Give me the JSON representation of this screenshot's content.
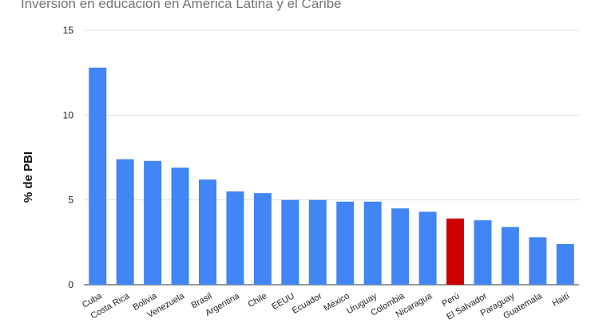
{
  "chart_data": {
    "type": "bar",
    "title": "Inversión en educación en América Latina y el Caribe",
    "xlabel": "",
    "ylabel": "% de PBI",
    "ylim": [
      0,
      15
    ],
    "yticks": [
      "0",
      "5",
      "10",
      "15"
    ],
    "ytick_values": [
      0,
      5,
      10,
      15
    ],
    "grid": true,
    "legend": "none",
    "categories": [
      "Cuba",
      "Costa Rica",
      "Bolivia",
      "Venezuela",
      "Brasil",
      "Argentina",
      "Chile",
      "EEUU",
      "Ecuador",
      "México",
      "Uruguay",
      "Colombia",
      "Nicaragua",
      "Perú",
      "El Salvador",
      "Paraguay",
      "Guatemala",
      "Haití"
    ],
    "values": [
      12.8,
      7.4,
      7.3,
      6.9,
      6.2,
      5.5,
      5.4,
      5.0,
      5.0,
      4.9,
      4.9,
      4.5,
      4.3,
      3.9,
      3.8,
      3.4,
      2.8,
      2.4
    ],
    "colors": {
      "default": "#4285f4",
      "highlight": "#cc0000",
      "highlight_category": "Perú",
      "grid": "#e0e0e0",
      "axis": "#333333",
      "text": "#222222",
      "title": "#757575"
    }
  }
}
